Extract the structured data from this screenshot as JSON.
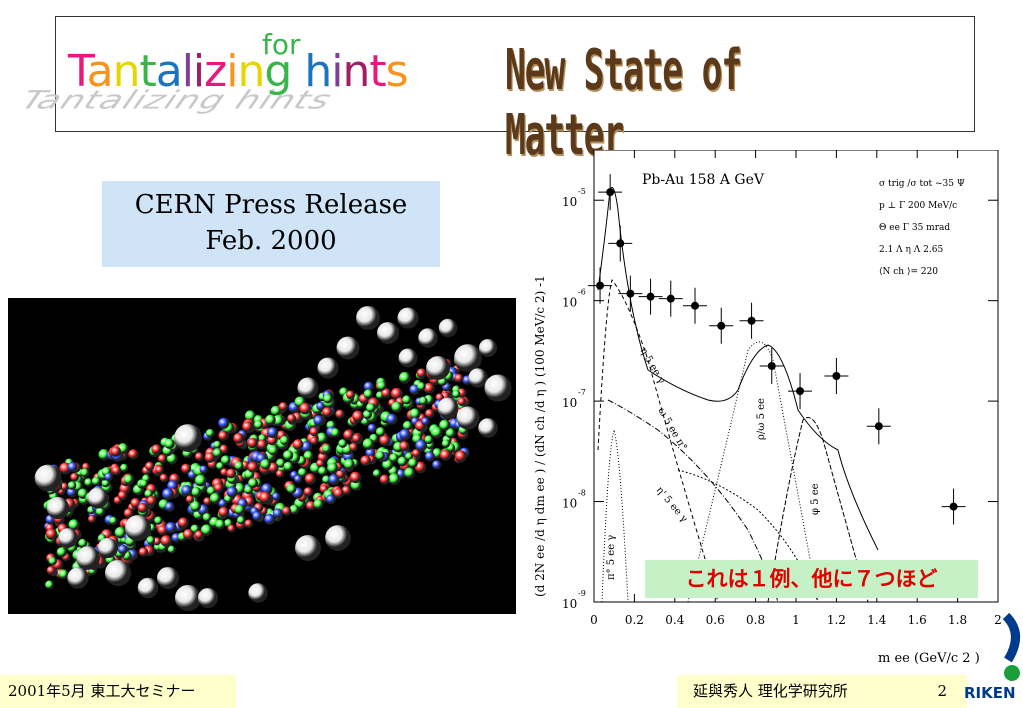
{
  "title": {
    "word_main": "Tantalizing",
    "word_for": "for",
    "word_hints": "hints",
    "right": "New State of Matter"
  },
  "press": {
    "line1": "CERN Press Release",
    "line2": "Feb. 2000"
  },
  "note": "これは１例、他に７つほど",
  "footer": {
    "left": "2001年5月  東工大セミナー",
    "right": "延與秀人  理化学研究所",
    "page": "2"
  },
  "logo": {
    "text": "RIKEN"
  },
  "chart_data": {
    "type": "scatter",
    "title": "Pb-Au 158 A GeV",
    "annotations": [
      "σ trig /σ tot ~35  Ψ",
      "p ⊥ Γ 200 MeV/c",
      "Θ ee Γ 35 mrad",
      "2.1 Λ η Λ 2.65",
      "⟨N ch ⟩= 220"
    ],
    "xlabel": "m ee  (GeV/c 2 )",
    "ylabel": "(d 2N ee /d η dm ee ) / (dN ch /d η ) (100 MeV/c 2) -1",
    "xlim": [
      0,
      2
    ],
    "ylim_log10": [
      -9,
      -4.5
    ],
    "x_ticks": [
      "0",
      "0.2",
      "0.4",
      "0.6",
      "0.8",
      "1",
      "1.2",
      "1.4",
      "1.6",
      "1.8",
      "2"
    ],
    "y_ticks": [
      "10 -9",
      "10 -8",
      "10 -7",
      "10 -6",
      "10 -5"
    ],
    "series": [
      {
        "values": [
          [
            0.03,
            -5.85
          ],
          [
            0.08,
            -4.92
          ],
          [
            0.13,
            -5.43
          ],
          [
            0.18,
            -5.93
          ],
          [
            0.28,
            -5.96
          ],
          [
            0.38,
            -5.98
          ],
          [
            0.5,
            -6.05
          ],
          [
            0.63,
            -6.25
          ],
          [
            0.78,
            -6.2
          ],
          [
            0.88,
            -6.65
          ],
          [
            1.02,
            -6.9
          ],
          [
            1.2,
            -6.75
          ],
          [
            1.41,
            -7.25
          ],
          [
            1.78,
            -8.05
          ]
        ]
      }
    ],
    "curve_labels": [
      "η  5 ee γ",
      "ω  5 ee π°",
      "η'  5 ee γ",
      "ρ/ω  5 ee",
      "φ 5 ee",
      "π°  5 ee γ"
    ]
  },
  "colors": {
    "press_bg": "#cfe4f7",
    "note_bg": "#c6f0c6",
    "note_text": "#e00000",
    "footer_bg": "#ffffcc",
    "logo_blue": "#003a8c",
    "logo_green": "#1a9e3a"
  }
}
